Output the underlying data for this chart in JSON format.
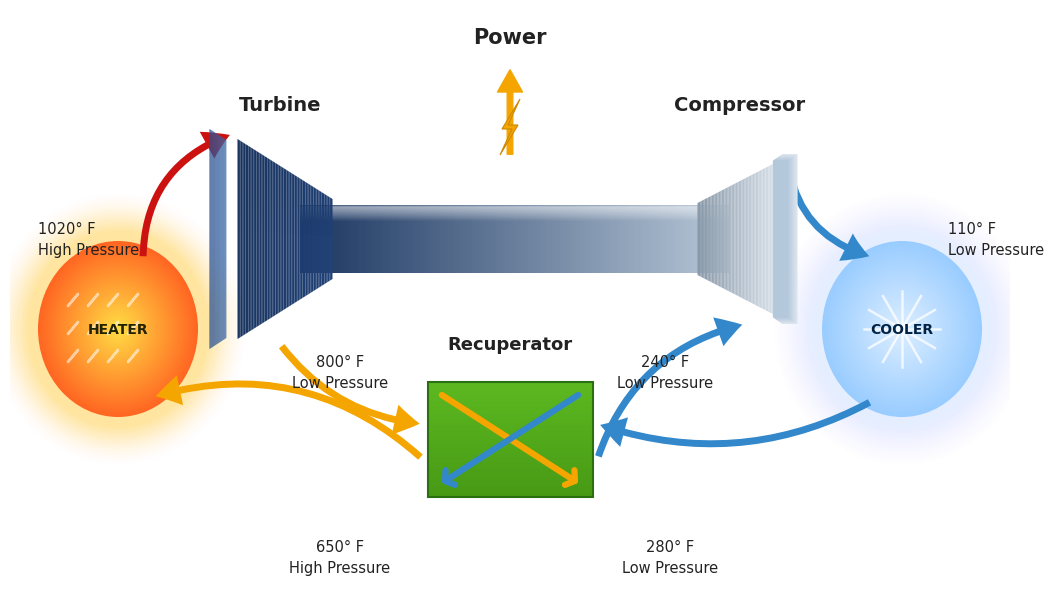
{
  "bg_color": "#ffffff",
  "power_label": "Power",
  "turbine_label": "Turbine",
  "compressor_label": "Compressor",
  "recuperator_label": "Recuperator",
  "heater_label": "HEATER",
  "cooler_label": "COOLER",
  "labels": {
    "top_left": "1020° F\nHigh Pressure",
    "top_right": "110° F\nLow Pressure",
    "mid_left": "800° F\nLow Pressure",
    "mid_right": "240° F\nLow Pressure",
    "bot_left": "650° F\nHigh Pressure",
    "bot_right": "280° F\nLow Pressure"
  },
  "red_color": "#cc1111",
  "yellow_color": "#f5a500",
  "blue_color": "#3388cc",
  "blue_light": "#66aadd",
  "dark_blue": "#1a3560",
  "mid_blue": "#2a5090",
  "green_dark": "#4a9918",
  "green_mid": "#5cb820",
  "heater_inner": "#ff6622",
  "heater_outer": "#ffdd44",
  "cooler_inner": "#99ccff",
  "cooler_outer": "#ddeeff",
  "shaft_dark": "#1a3560",
  "shaft_light": "#b8c8d8",
  "comp_dark": "#8898a8",
  "comp_light": "#e0e8f0",
  "turbine_dark": "#1a3560",
  "turbine_mid": "#2a5090",
  "turbine_face": "#3a6aaa"
}
